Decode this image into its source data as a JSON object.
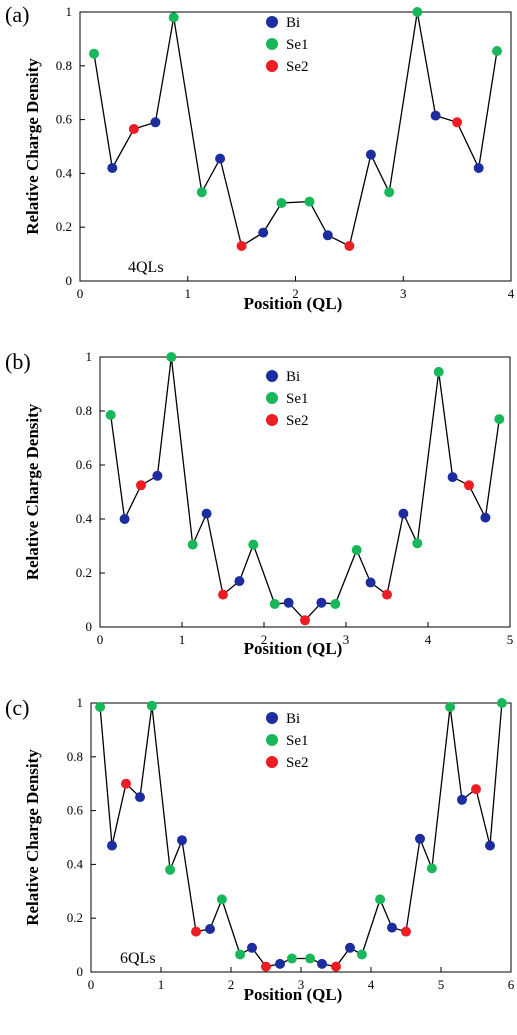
{
  "series_colors": {
    "Bi": "#1c2da0",
    "Se1": "#17b75a",
    "Se2": "#ee1c24"
  },
  "line_color": "#000000",
  "chart_data": [
    {
      "type": "line",
      "panel_label": "(a)",
      "annotation": "4QLs",
      "xlabel": "Position (QL)",
      "ylabel": "Relative Charge Density",
      "xlim": [
        0,
        4
      ],
      "ylim": [
        0,
        1
      ],
      "xticks": [
        "0",
        "1",
        "2",
        "3",
        "4"
      ],
      "yticks": [
        "0",
        "0.2",
        "0.4",
        "0.6",
        "0.8",
        "1"
      ],
      "legend": [
        "Bi",
        "Se1",
        "Se2"
      ],
      "legend_position": "top-center",
      "grid": false,
      "points": [
        {
          "x": 0.13,
          "y": 0.845,
          "s": "Se1"
        },
        {
          "x": 0.3,
          "y": 0.42,
          "s": "Bi"
        },
        {
          "x": 0.5,
          "y": 0.565,
          "s": "Se2"
        },
        {
          "x": 0.7,
          "y": 0.59,
          "s": "Bi"
        },
        {
          "x": 0.87,
          "y": 0.98,
          "s": "Se1"
        },
        {
          "x": 1.13,
          "y": 0.33,
          "s": "Se1"
        },
        {
          "x": 1.3,
          "y": 0.455,
          "s": "Bi"
        },
        {
          "x": 1.5,
          "y": 0.13,
          "s": "Se2"
        },
        {
          "x": 1.7,
          "y": 0.18,
          "s": "Bi"
        },
        {
          "x": 1.87,
          "y": 0.29,
          "s": "Se1"
        },
        {
          "x": 2.13,
          "y": 0.295,
          "s": "Se1"
        },
        {
          "x": 2.3,
          "y": 0.17,
          "s": "Bi"
        },
        {
          "x": 2.5,
          "y": 0.13,
          "s": "Se2"
        },
        {
          "x": 2.7,
          "y": 0.47,
          "s": "Bi"
        },
        {
          "x": 2.87,
          "y": 0.33,
          "s": "Se1"
        },
        {
          "x": 3.13,
          "y": 1.0,
          "s": "Se1"
        },
        {
          "x": 3.3,
          "y": 0.615,
          "s": "Bi"
        },
        {
          "x": 3.5,
          "y": 0.59,
          "s": "Se2"
        },
        {
          "x": 3.7,
          "y": 0.42,
          "s": "Bi"
        },
        {
          "x": 3.87,
          "y": 0.855,
          "s": "Se1"
        }
      ]
    },
    {
      "type": "line",
      "panel_label": "(b)",
      "xlabel": "Position (QL)",
      "ylabel": "Relative Charge Density",
      "xlim": [
        0,
        5
      ],
      "ylim": [
        0,
        1
      ],
      "xticks": [
        "0",
        "1",
        "2",
        "3",
        "4",
        "5"
      ],
      "yticks": [
        "0",
        "0.2",
        "0.4",
        "0.6",
        "0.8",
        "1"
      ],
      "legend": [
        "Bi",
        "Se1",
        "Se2"
      ],
      "legend_position": "top-center",
      "grid": false,
      "points": [
        {
          "x": 0.13,
          "y": 0.785,
          "s": "Se1"
        },
        {
          "x": 0.3,
          "y": 0.4,
          "s": "Bi"
        },
        {
          "x": 0.5,
          "y": 0.525,
          "s": "Se2"
        },
        {
          "x": 0.7,
          "y": 0.56,
          "s": "Bi"
        },
        {
          "x": 0.87,
          "y": 1.0,
          "s": "Se1"
        },
        {
          "x": 1.13,
          "y": 0.305,
          "s": "Se1"
        },
        {
          "x": 1.3,
          "y": 0.42,
          "s": "Bi"
        },
        {
          "x": 1.5,
          "y": 0.12,
          "s": "Se2"
        },
        {
          "x": 1.7,
          "y": 0.17,
          "s": "Bi"
        },
        {
          "x": 1.87,
          "y": 0.305,
          "s": "Se1"
        },
        {
          "x": 2.13,
          "y": 0.085,
          "s": "Se1"
        },
        {
          "x": 2.3,
          "y": 0.09,
          "s": "Bi"
        },
        {
          "x": 2.5,
          "y": 0.025,
          "s": "Se2"
        },
        {
          "x": 2.7,
          "y": 0.09,
          "s": "Bi"
        },
        {
          "x": 2.87,
          "y": 0.085,
          "s": "Se1"
        },
        {
          "x": 3.13,
          "y": 0.285,
          "s": "Se1"
        },
        {
          "x": 3.3,
          "y": 0.165,
          "s": "Bi"
        },
        {
          "x": 3.5,
          "y": 0.12,
          "s": "Se2"
        },
        {
          "x": 3.7,
          "y": 0.42,
          "s": "Bi"
        },
        {
          "x": 3.87,
          "y": 0.31,
          "s": "Se1"
        },
        {
          "x": 4.13,
          "y": 0.945,
          "s": "Se1"
        },
        {
          "x": 4.3,
          "y": 0.555,
          "s": "Bi"
        },
        {
          "x": 4.5,
          "y": 0.525,
          "s": "Se2"
        },
        {
          "x": 4.7,
          "y": 0.405,
          "s": "Bi"
        },
        {
          "x": 4.87,
          "y": 0.77,
          "s": "Se1"
        }
      ]
    },
    {
      "type": "line",
      "panel_label": "(c)",
      "annotation": "6QLs",
      "xlabel": "Position (QL)",
      "ylabel": "Relative Charge Density",
      "xlim": [
        0,
        6
      ],
      "ylim": [
        0,
        1
      ],
      "xticks": [
        "0",
        "1",
        "2",
        "3",
        "4",
        "5",
        "6"
      ],
      "yticks": [
        "0",
        "0.2",
        "0.4",
        "0.6",
        "0.8",
        "1"
      ],
      "legend": [
        "Bi",
        "Se1",
        "Se2"
      ],
      "legend_position": "top-center",
      "grid": false,
      "points": [
        {
          "x": 0.13,
          "y": 0.985,
          "s": "Se1"
        },
        {
          "x": 0.3,
          "y": 0.47,
          "s": "Bi"
        },
        {
          "x": 0.5,
          "y": 0.7,
          "s": "Se2"
        },
        {
          "x": 0.7,
          "y": 0.65,
          "s": "Bi"
        },
        {
          "x": 0.87,
          "y": 0.99,
          "s": "Se1"
        },
        {
          "x": 1.13,
          "y": 0.38,
          "s": "Se1"
        },
        {
          "x": 1.3,
          "y": 0.49,
          "s": "Bi"
        },
        {
          "x": 1.5,
          "y": 0.15,
          "s": "Se2"
        },
        {
          "x": 1.7,
          "y": 0.16,
          "s": "Bi"
        },
        {
          "x": 1.87,
          "y": 0.27,
          "s": "Se1"
        },
        {
          "x": 2.13,
          "y": 0.065,
          "s": "Se1"
        },
        {
          "x": 2.3,
          "y": 0.09,
          "s": "Bi"
        },
        {
          "x": 2.5,
          "y": 0.02,
          "s": "Se2"
        },
        {
          "x": 2.7,
          "y": 0.03,
          "s": "Bi"
        },
        {
          "x": 2.87,
          "y": 0.05,
          "s": "Se1"
        },
        {
          "x": 3.13,
          "y": 0.05,
          "s": "Se1"
        },
        {
          "x": 3.3,
          "y": 0.03,
          "s": "Bi"
        },
        {
          "x": 3.5,
          "y": 0.02,
          "s": "Se2"
        },
        {
          "x": 3.7,
          "y": 0.09,
          "s": "Bi"
        },
        {
          "x": 3.87,
          "y": 0.065,
          "s": "Se1"
        },
        {
          "x": 4.13,
          "y": 0.27,
          "s": "Se1"
        },
        {
          "x": 4.3,
          "y": 0.165,
          "s": "Bi"
        },
        {
          "x": 4.5,
          "y": 0.15,
          "s": "Se2"
        },
        {
          "x": 4.7,
          "y": 0.495,
          "s": "Bi"
        },
        {
          "x": 4.87,
          "y": 0.385,
          "s": "Se1"
        },
        {
          "x": 5.13,
          "y": 0.985,
          "s": "Se1"
        },
        {
          "x": 5.3,
          "y": 0.64,
          "s": "Bi"
        },
        {
          "x": 5.5,
          "y": 0.68,
          "s": "Se2"
        },
        {
          "x": 5.7,
          "y": 0.47,
          "s": "Bi"
        },
        {
          "x": 5.87,
          "y": 1.0,
          "s": "Se1"
        }
      ]
    }
  ]
}
